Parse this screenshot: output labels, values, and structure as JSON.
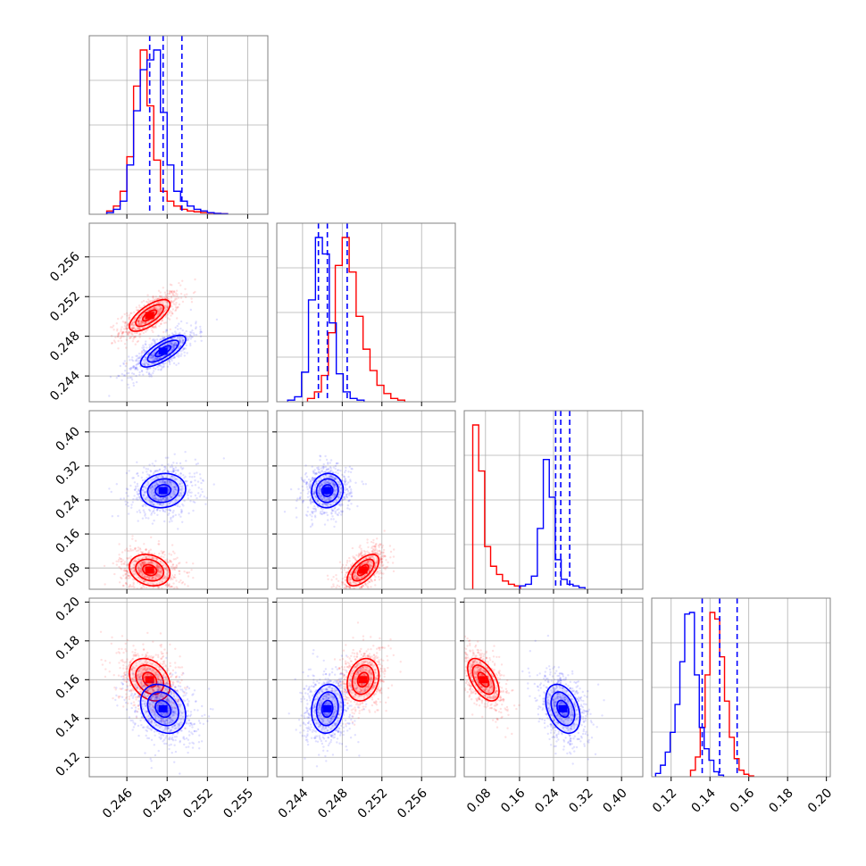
{
  "colors": {
    "series_a": "#ff0000",
    "series_b": "#0000ff"
  },
  "chart_data": {
    "type": "corner",
    "grid": true,
    "n_params": 4,
    "params": [
      {
        "name": "",
        "range": [
          0.2432,
          0.2565
        ],
        "ticks": [
          0.246,
          0.249,
          0.252,
          0.255
        ],
        "tick_labels": [
          "0.246",
          "0.249",
          "0.252",
          "0.255"
        ]
      },
      {
        "name": "",
        "range": [
          0.2414,
          0.2594
        ],
        "ticks": [
          0.244,
          0.248,
          0.252,
          0.256
        ],
        "tick_labels": [
          "0.244",
          "0.248",
          "0.252",
          "0.256"
        ]
      },
      {
        "name": "",
        "range": [
          0.03,
          0.45
        ],
        "ticks": [
          0.08,
          0.16,
          0.24,
          0.32,
          0.4
        ],
        "tick_labels": [
          "0.08",
          "0.16",
          "0.24",
          "0.32",
          "0.40"
        ]
      },
      {
        "name": "",
        "range": [
          0.11,
          0.202
        ],
        "ticks": [
          0.12,
          0.14,
          0.16,
          0.18,
          0.2
        ],
        "tick_labels": [
          "0.12",
          "0.14",
          "0.16",
          "0.18",
          "0.20"
        ]
      }
    ],
    "series": [
      {
        "name": "",
        "color": "#ff0000",
        "mean": [
          0.2477,
          0.2501,
          0.075,
          0.16
        ],
        "std": [
          0.0009,
          0.00095,
          0.022,
          0.0065
        ],
        "corr": [
          [
            1.0,
            0.7,
            -0.2,
            -0.3
          ],
          [
            0.7,
            1.0,
            0.6,
            0.2
          ],
          [
            -0.2,
            0.6,
            1.0,
            -0.55
          ],
          [
            -0.3,
            0.2,
            -0.55,
            1.0
          ]
        ],
        "histograms": [
          {
            "bin_start": 0.2445,
            "bin_width": 0.0005,
            "counts": [
              0.02,
              0.05,
              0.14,
              0.35,
              0.78,
              1.0,
              0.66,
              0.33,
              0.14,
              0.08,
              0.05,
              0.03,
              0.02,
              0.015,
              0.01,
              0.008,
              0.005,
              0.003
            ]
          },
          {
            "bin_start": 0.2445,
            "bin_width": 0.0007,
            "counts": [
              0.02,
              0.06,
              0.16,
              0.42,
              0.83,
              1.0,
              0.79,
              0.52,
              0.32,
              0.19,
              0.1,
              0.05,
              0.02,
              0.01
            ]
          },
          {
            "bin_start": 0.05,
            "bin_width": 0.014,
            "counts": [
              1.0,
              0.72,
              0.26,
              0.14,
              0.09,
              0.05,
              0.03,
              0.02
            ]
          },
          {
            "bin_start": 0.13,
            "bin_width": 0.0025,
            "counts": [
              0.04,
              0.12,
              0.3,
              0.62,
              1.0,
              0.96,
              0.73,
              0.46,
              0.24,
              0.11,
              0.04,
              0.015,
              0.005
            ]
          }
        ]
      },
      {
        "name": "",
        "color": "#0000ff",
        "mean": [
          0.2487,
          0.2465,
          0.262,
          0.145
        ],
        "std": [
          0.001,
          0.00095,
          0.024,
          0.0075
        ],
        "quantiles": [
          [
            0.2477,
            0.2487,
            0.2501
          ],
          [
            0.2456,
            0.2465,
            0.2485
          ],
          [
            0.245,
            0.257,
            0.278
          ],
          [
            0.136,
            0.145,
            0.154
          ]
        ],
        "corr": [
          [
            1.0,
            0.75,
            0.1,
            -0.25
          ],
          [
            0.75,
            1.0,
            0.05,
            0.1
          ],
          [
            0.1,
            0.05,
            1.0,
            -0.35
          ],
          [
            -0.25,
            0.1,
            -0.35,
            1.0
          ]
        ],
        "histograms": [
          {
            "bin_start": 0.2445,
            "bin_width": 0.0005,
            "counts": [
              0.01,
              0.03,
              0.08,
              0.3,
              0.63,
              0.88,
              0.94,
              1.0,
              0.62,
              0.3,
              0.14,
              0.08,
              0.05,
              0.03,
              0.02,
              0.01,
              0.005,
              0.003
            ]
          },
          {
            "bin_start": 0.2425,
            "bin_width": 0.0007,
            "counts": [
              0.01,
              0.03,
              0.18,
              0.62,
              1.0,
              0.9,
              0.48,
              0.17,
              0.06,
              0.02,
              0.01
            ]
          },
          {
            "bin_start": 0.16,
            "bin_width": 0.014,
            "counts": [
              0.02,
              0.03,
              0.08,
              0.37,
              0.79,
              0.56,
              0.18,
              0.06,
              0.03,
              0.02,
              0.01
            ]
          },
          {
            "bin_start": 0.112,
            "bin_width": 0.0025,
            "counts": [
              0.02,
              0.07,
              0.15,
              0.27,
              0.44,
              0.7,
              0.99,
              1.0,
              0.62,
              0.3,
              0.17,
              0.1,
              0.03,
              0.01
            ]
          }
        ]
      }
    ]
  }
}
